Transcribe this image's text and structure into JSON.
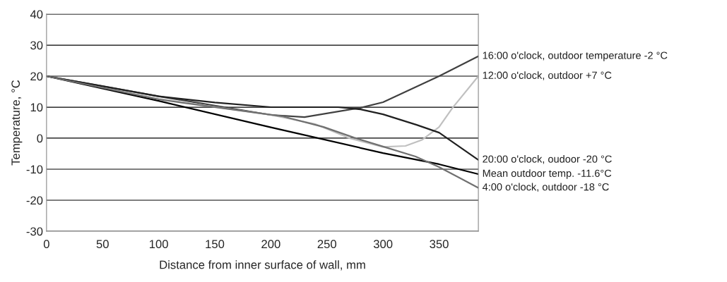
{
  "chart_data": {
    "type": "line",
    "xlabel": "Distance from inner surface of wall, mm",
    "ylabel": "Temperature, °C",
    "xlim": [
      0,
      385
    ],
    "xticks": [
      0,
      50,
      100,
      150,
      200,
      250,
      300,
      350
    ],
    "ylim": [
      -30,
      40
    ],
    "yticks": [
      -30,
      -20,
      -10,
      0,
      10,
      20,
      30,
      40
    ],
    "grid": "y",
    "series": [
      {
        "name": "16:00 o'clock, outdoor temperature -2 °C",
        "color": "#404040",
        "x": [
          0,
          50,
          100,
          150,
          200,
          230,
          280,
          300,
          350,
          385
        ],
        "values": [
          20,
          16.8,
          13.5,
          10.5,
          7.5,
          6.8,
          9.8,
          11.6,
          20,
          26.4
        ]
      },
      {
        "name": "12:00 o'clock, outdoor +7 °C",
        "color": "#c0c0c0",
        "x": [
          0,
          100,
          200,
          240,
          270,
          300,
          320,
          335,
          350,
          362,
          385
        ],
        "values": [
          20,
          12.7,
          7.5,
          4.5,
          0,
          -2.8,
          -2.5,
          -0.5,
          3.6,
          9.8,
          20
        ]
      },
      {
        "name": "20:00 o'clock, oudoor -20 °C",
        "color": "#202020",
        "x": [
          0,
          100,
          150,
          200,
          240,
          260,
          280,
          300,
          330,
          350,
          385
        ],
        "values": [
          20,
          13.5,
          11.5,
          10,
          10,
          10,
          9.3,
          7.7,
          4.3,
          1.8,
          -7
        ]
      },
      {
        "name": "Mean outdoor temp. -11.6°C",
        "color": "#000000",
        "x": [
          0,
          100,
          200,
          300,
          350,
          385
        ],
        "values": [
          20,
          12,
          3.5,
          -4.8,
          -8.4,
          -11.6
        ]
      },
      {
        "name": "4:00 o'clock, outdoor -18 °C",
        "color": "#707070",
        "x": [
          0,
          100,
          211,
          247,
          274,
          300,
          329,
          350,
          385
        ],
        "values": [
          20,
          12.5,
          7,
          3.6,
          0.2,
          -2.7,
          -5.9,
          -9.3,
          -16
        ]
      }
    ]
  }
}
